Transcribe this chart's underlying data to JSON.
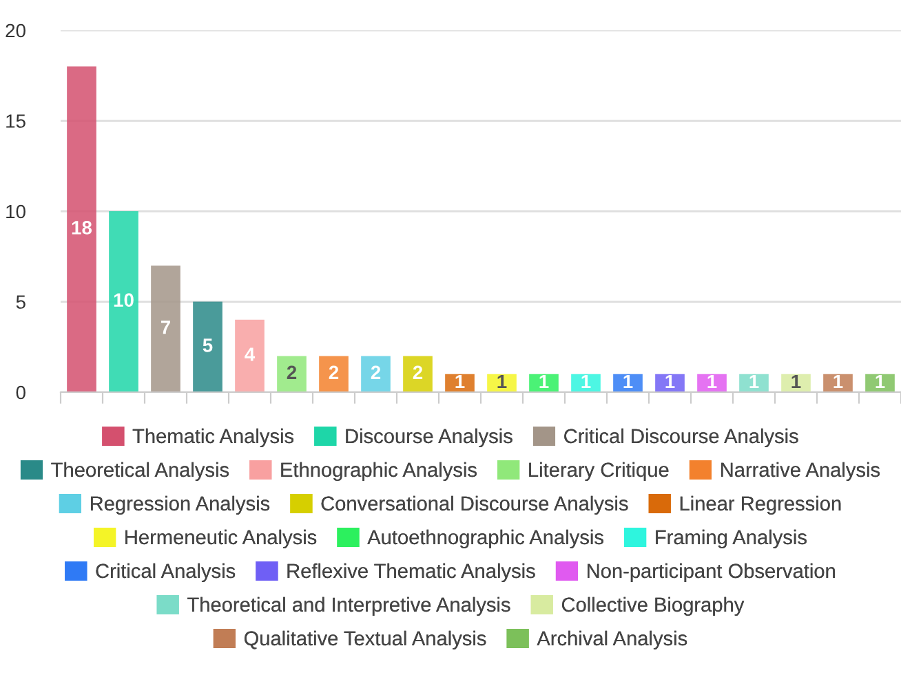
{
  "chart_data": {
    "type": "bar",
    "categories": [
      null,
      null,
      null,
      null,
      null,
      null,
      null,
      null,
      null,
      null,
      null,
      null,
      null,
      null,
      null,
      null,
      null,
      null,
      null,
      null
    ],
    "series": [
      {
        "name": "Thematic Analysis",
        "color": "#d4506e",
        "values": [
          18,
          null,
          null,
          null,
          null,
          null,
          null,
          null,
          null,
          null,
          null,
          null,
          null,
          null,
          null,
          null,
          null,
          null,
          null,
          null
        ]
      },
      {
        "name": "Discourse Analysis",
        "color": "#1ed6a8",
        "values": [
          null,
          10,
          null,
          null,
          null,
          null,
          null,
          null,
          null,
          null,
          null,
          null,
          null,
          null,
          null,
          null,
          null,
          null,
          null,
          null
        ]
      },
      {
        "name": "Critical Discourse Analysis",
        "color": "#a39588",
        "values": [
          null,
          null,
          7,
          null,
          null,
          null,
          null,
          null,
          null,
          null,
          null,
          null,
          null,
          null,
          null,
          null,
          null,
          null,
          null,
          null
        ]
      },
      {
        "name": "Theoretical Analysis",
        "color": "#2a8a88",
        "values": [
          null,
          null,
          null,
          5,
          null,
          null,
          null,
          null,
          null,
          null,
          null,
          null,
          null,
          null,
          null,
          null,
          null,
          null,
          null,
          null
        ]
      },
      {
        "name": "Ethnographic Analysis",
        "color": "#f8a0a0",
        "values": [
          null,
          null,
          null,
          null,
          4,
          null,
          null,
          null,
          null,
          null,
          null,
          null,
          null,
          null,
          null,
          null,
          null,
          null,
          null,
          null
        ]
      },
      {
        "name": "Literary Critique",
        "color": "#90e87a",
        "values": [
          null,
          null,
          null,
          null,
          null,
          2,
          null,
          null,
          null,
          null,
          null,
          null,
          null,
          null,
          null,
          null,
          null,
          null,
          null,
          null
        ]
      },
      {
        "name": "Narrative Analysis",
        "color": "#f3812d",
        "values": [
          null,
          null,
          null,
          null,
          null,
          null,
          2,
          null,
          null,
          null,
          null,
          null,
          null,
          null,
          null,
          null,
          null,
          null,
          null,
          null
        ]
      },
      {
        "name": "Regression Analysis",
        "color": "#5ecfe4",
        "values": [
          null,
          null,
          null,
          null,
          null,
          null,
          null,
          2,
          null,
          null,
          null,
          null,
          null,
          null,
          null,
          null,
          null,
          null,
          null,
          null
        ]
      },
      {
        "name": "Conversational Discourse Analysis",
        "color": "#d6cf00",
        "values": [
          null,
          null,
          null,
          null,
          null,
          null,
          null,
          null,
          2,
          null,
          null,
          null,
          null,
          null,
          null,
          null,
          null,
          null,
          null,
          null
        ]
      },
      {
        "name": "Linear Regression",
        "color": "#d96a0a",
        "values": [
          null,
          null,
          null,
          null,
          null,
          null,
          null,
          null,
          null,
          1,
          null,
          null,
          null,
          null,
          null,
          null,
          null,
          null,
          null,
          null
        ]
      },
      {
        "name": "Hermeneutic Analysis",
        "color": "#f4f427",
        "values": [
          null,
          null,
          null,
          null,
          null,
          null,
          null,
          null,
          null,
          null,
          1,
          null,
          null,
          null,
          null,
          null,
          null,
          null,
          null,
          null
        ]
      },
      {
        "name": "Autoethnographic Analysis",
        "color": "#2cf05e",
        "values": [
          null,
          null,
          null,
          null,
          null,
          null,
          null,
          null,
          null,
          null,
          null,
          1,
          null,
          null,
          null,
          null,
          null,
          null,
          null,
          null
        ]
      },
      {
        "name": "Framing Analysis",
        "color": "#2ef5de",
        "values": [
          null,
          null,
          null,
          null,
          null,
          null,
          null,
          null,
          null,
          null,
          null,
          null,
          1,
          null,
          null,
          null,
          null,
          null,
          null,
          null
        ]
      },
      {
        "name": "Critical Analysis",
        "color": "#2f7af5",
        "values": [
          null,
          null,
          null,
          null,
          null,
          null,
          null,
          null,
          null,
          null,
          null,
          null,
          null,
          1,
          null,
          null,
          null,
          null,
          null,
          null
        ]
      },
      {
        "name": "Reflexive Thematic Analysis",
        "color": "#6f5ff5",
        "values": [
          null,
          null,
          null,
          null,
          null,
          null,
          null,
          null,
          null,
          null,
          null,
          null,
          null,
          null,
          1,
          null,
          null,
          null,
          null,
          null
        ]
      },
      {
        "name": "Non-participant Observation",
        "color": "#e05af0",
        "values": [
          null,
          null,
          null,
          null,
          null,
          null,
          null,
          null,
          null,
          null,
          null,
          null,
          null,
          null,
          null,
          1,
          null,
          null,
          null,
          null
        ]
      },
      {
        "name": "Theoretical and Interpretive Analysis",
        "color": "#7bdcc8",
        "values": [
          null,
          null,
          null,
          null,
          null,
          null,
          null,
          null,
          null,
          null,
          null,
          null,
          null,
          null,
          null,
          null,
          1,
          null,
          null,
          null
        ]
      },
      {
        "name": "Collective Biography",
        "color": "#d8eba0",
        "values": [
          null,
          null,
          null,
          null,
          null,
          null,
          null,
          null,
          null,
          null,
          null,
          null,
          null,
          null,
          null,
          null,
          null,
          1,
          null,
          null
        ]
      },
      {
        "name": "Qualitative Textual Analysis",
        "color": "#c17d55",
        "values": [
          null,
          null,
          null,
          null,
          null,
          null,
          null,
          null,
          null,
          null,
          null,
          null,
          null,
          null,
          null,
          null,
          null,
          null,
          1,
          null
        ]
      },
      {
        "name": "Archival Analysis",
        "color": "#7cc05a",
        "values": [
          null,
          null,
          null,
          null,
          null,
          null,
          null,
          null,
          null,
          null,
          null,
          null,
          null,
          null,
          null,
          null,
          null,
          null,
          null,
          1
        ]
      }
    ],
    "ylim": [
      0,
      20
    ],
    "yticks": [
      0,
      5,
      10,
      15,
      20
    ],
    "grid": "y",
    "legend": "bottom",
    "data_labels": true
  }
}
